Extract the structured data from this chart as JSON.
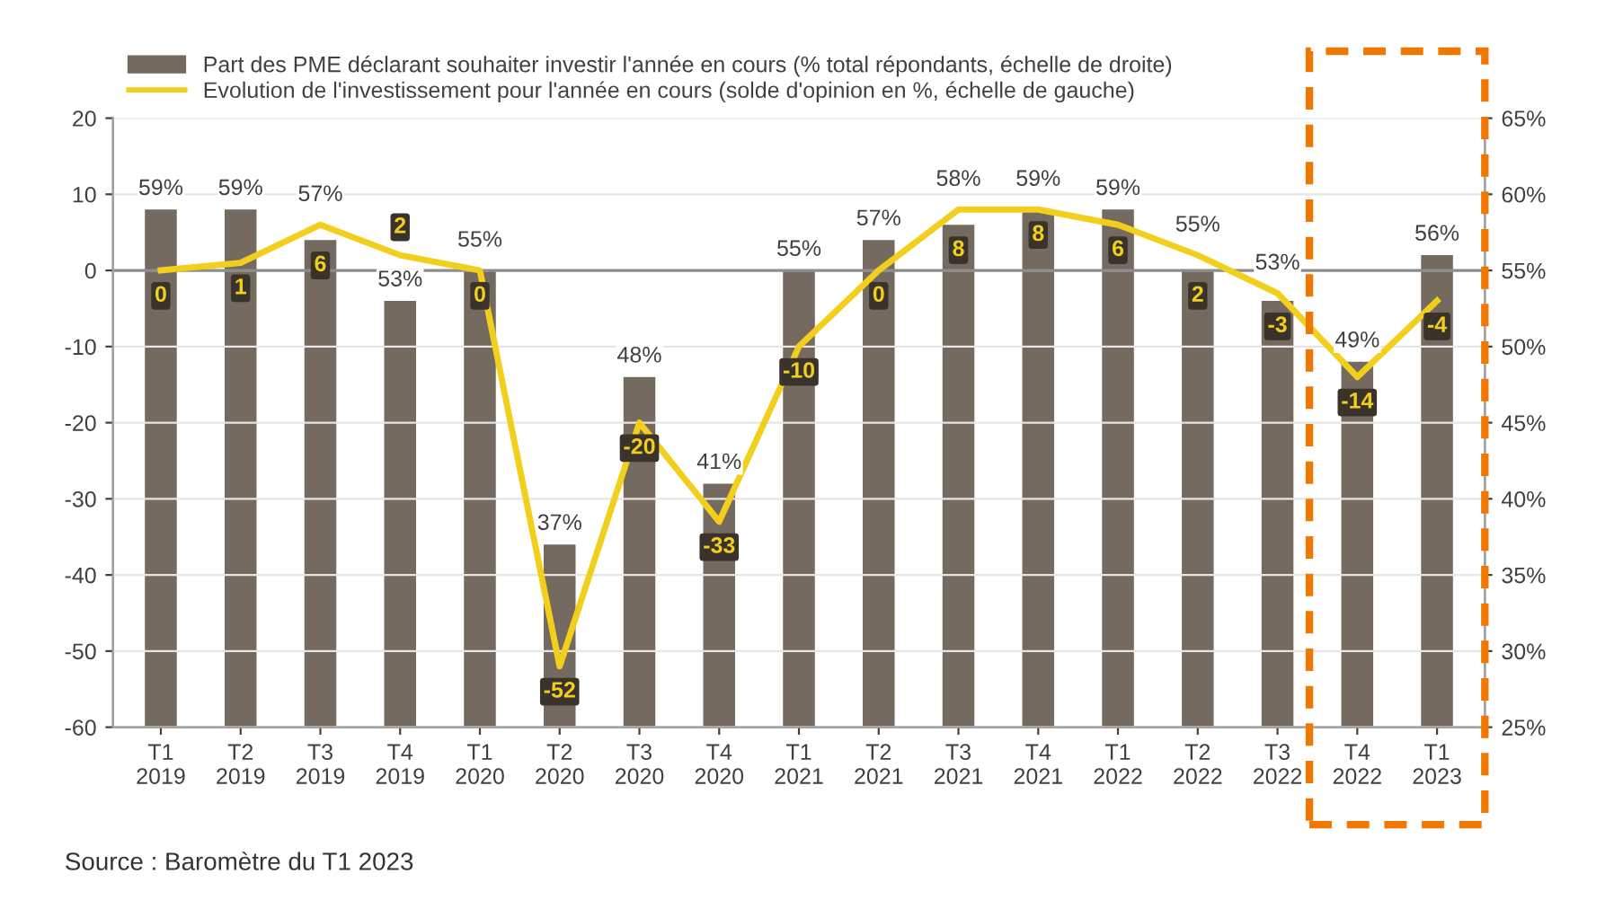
{
  "chart_data": {
    "type": "bar",
    "categories": [
      "T1\n2019",
      "T2\n2019",
      "T3\n2019",
      "T4\n2019",
      "T1\n2020",
      "T2\n2020",
      "T3\n2020",
      "T4\n2020",
      "T1\n2021",
      "T2\n2021",
      "T3\n2021",
      "T4\n2021",
      "T1\n2022",
      "T2\n2022",
      "T3\n2022",
      "T4\n2022",
      "T1\n2023"
    ],
    "series": [
      {
        "name": "Part des PME déclarant souhaiter investir l'année en cours (% total répondants, échelle de droite)",
        "axis": "y2",
        "color": "#756a5f",
        "values": [
          59,
          59,
          57,
          53,
          55,
          37,
          48,
          41,
          55,
          57,
          58,
          59,
          59,
          55,
          53,
          49,
          56
        ],
        "value_labels": [
          "59%",
          "59%",
          "57%",
          "53%",
          "55%",
          "37%",
          "48%",
          "41%",
          "55%",
          "57%",
          "58%",
          "59%",
          "59%",
          "55%",
          "53%",
          "49%",
          "56%"
        ]
      },
      {
        "name": "Evolution de l'investissement pour l'année en cours (solde d'opinion en %, échelle de gauche)",
        "type": "line",
        "axis": "y",
        "color": "#f2cf1c",
        "values": [
          0,
          1,
          6,
          2,
          0,
          -52,
          -20,
          -33,
          -10,
          0,
          8,
          8,
          6,
          2,
          -3,
          -14,
          -4
        ],
        "value_labels": [
          "0",
          "1",
          "6",
          "2",
          "0",
          "-52",
          "-20",
          "-33",
          "-10",
          "0",
          "8",
          "8",
          "6",
          "2",
          "-3",
          "-14",
          "-4"
        ]
      }
    ],
    "ylim": [
      -60,
      20
    ],
    "yticks": [
      -60,
      -50,
      -40,
      -30,
      -20,
      -10,
      0,
      10,
      20
    ],
    "y2lim": [
      25,
      65
    ],
    "y2ticks": [
      {
        "value": 25,
        "label": "25%"
      },
      {
        "value": 30,
        "label": "30%"
      },
      {
        "value": 35,
        "label": "35%"
      },
      {
        "value": 40,
        "label": "40%"
      },
      {
        "value": 45,
        "label": "45%"
      },
      {
        "value": 50,
        "label": "50%"
      },
      {
        "value": 55,
        "label": "55%"
      },
      {
        "value": 60,
        "label": "60%"
      },
      {
        "value": 65,
        "label": "65%"
      }
    ],
    "ref_lines": [
      {
        "axis": "y",
        "value": 0,
        "color": "#8c8c8c"
      }
    ],
    "grid": "y",
    "legend": "top",
    "marker": "none",
    "line_style": "solid",
    "annotations": [
      "Source : Baromètre du T1 2023"
    ]
  }
}
